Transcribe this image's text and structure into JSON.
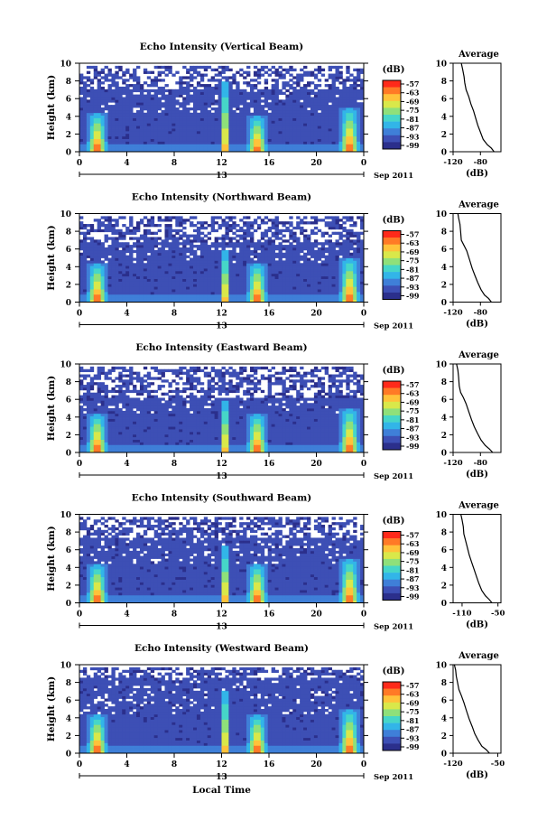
{
  "figure": {
    "date_label": "Sep 2011",
    "day_label": "13",
    "xlabel": "Local Time",
    "colorbar_unit": "(dB)",
    "avg_xlabel": "(dB)",
    "avg_title": "Average"
  },
  "colors": {
    "scale": [
      "#2b2f8c",
      "#3d4fb5",
      "#3f7fd8",
      "#32b5e8",
      "#46d6c8",
      "#8fe07a",
      "#d9e84a",
      "#ffc23a",
      "#ff7a26",
      "#ff2a1a"
    ]
  },
  "chart_data": [
    {
      "type": "heatmap",
      "title": "Echo Intensity (Vertical Beam)",
      "xlabel": "Local Time",
      "ylabel": "Height (km)",
      "xlim": [
        0,
        24
      ],
      "ylim": [
        0,
        10
      ],
      "x_ticks": [
        "0",
        "4",
        "8",
        "12",
        "16",
        "20",
        "0"
      ],
      "y_ticks": [
        "0",
        "2",
        "4",
        "6",
        "8",
        "10"
      ],
      "colorbar": {
        "unit": "(dB)",
        "ticks": [
          "-57",
          "-63",
          "-69",
          "-75",
          "-81",
          "-87",
          "-93",
          "-99"
        ]
      },
      "convective_cells": [
        {
          "x": 1.5,
          "top": 4.5
        },
        {
          "x": 12.3,
          "top": 8.0
        },
        {
          "x": 15.0,
          "top": 4.2
        },
        {
          "x": 22.8,
          "top": 5.0
        }
      ],
      "cloud_top_km": 7.2,
      "average_profile": {
        "title": "Average",
        "xlabel": "(dB)",
        "xlim": [
          -120,
          -50
        ],
        "x_ticks": [
          "-120",
          "-80"
        ],
        "points": [
          [
            -108,
            10
          ],
          [
            -106,
            9.3
          ],
          [
            -104,
            8.5
          ],
          [
            -103,
            7.8
          ],
          [
            -101,
            7.0
          ],
          [
            -97,
            6.2
          ],
          [
            -94,
            5.4
          ],
          [
            -90,
            4.6
          ],
          [
            -87,
            3.8
          ],
          [
            -84,
            3.0
          ],
          [
            -80,
            2.2
          ],
          [
            -76,
            1.4
          ],
          [
            -70,
            0.8
          ],
          [
            -64,
            0.4
          ],
          [
            -60,
            0
          ]
        ]
      }
    },
    {
      "type": "heatmap",
      "title": "Echo Intensity (Northward Beam)",
      "xlabel": "Local Time",
      "ylabel": "Height (km)",
      "xlim": [
        0,
        24
      ],
      "ylim": [
        0,
        10
      ],
      "x_ticks": [
        "0",
        "4",
        "8",
        "12",
        "16",
        "20",
        "0"
      ],
      "y_ticks": [
        "0",
        "2",
        "4",
        "6",
        "8",
        "10"
      ],
      "colorbar": {
        "unit": "(dB)",
        "ticks": [
          "-57",
          "-63",
          "-69",
          "-75",
          "-81",
          "-87",
          "-93",
          "-99"
        ]
      },
      "convective_cells": [
        {
          "x": 1.5,
          "top": 4.5
        },
        {
          "x": 12.3,
          "top": 6.0
        },
        {
          "x": 15.0,
          "top": 4.5
        },
        {
          "x": 22.8,
          "top": 5.0
        }
      ],
      "cloud_top_km": 6.8,
      "average_profile": {
        "title": "Average",
        "xlabel": "(dB)",
        "xlim": [
          -120,
          -50
        ],
        "x_ticks": [
          "-120",
          "-80"
        ],
        "points": [
          [
            -113,
            10
          ],
          [
            -112,
            9.5
          ],
          [
            -110,
            8.8
          ],
          [
            -109,
            8.0
          ],
          [
            -108,
            7.0
          ],
          [
            -104,
            6.4
          ],
          [
            -100,
            5.8
          ],
          [
            -96,
            4.8
          ],
          [
            -92,
            3.8
          ],
          [
            -88,
            3.0
          ],
          [
            -84,
            2.2
          ],
          [
            -79,
            1.4
          ],
          [
            -74,
            0.8
          ],
          [
            -68,
            0.4
          ],
          [
            -64,
            0
          ]
        ]
      }
    },
    {
      "type": "heatmap",
      "title": "Echo Intensity (Eastward Beam)",
      "xlabel": "Local Time",
      "ylabel": "Height (km)",
      "xlim": [
        0,
        24
      ],
      "ylim": [
        0,
        10
      ],
      "x_ticks": [
        "0",
        "4",
        "8",
        "12",
        "16",
        "20",
        "0"
      ],
      "y_ticks": [
        "0",
        "2",
        "4",
        "6",
        "8",
        "10"
      ],
      "colorbar": {
        "unit": "(dB)",
        "ticks": [
          "-57",
          "-63",
          "-69",
          "-75",
          "-81",
          "-87",
          "-93",
          "-99"
        ]
      },
      "convective_cells": [
        {
          "x": 1.5,
          "top": 4.5
        },
        {
          "x": 12.3,
          "top": 6.0
        },
        {
          "x": 15.0,
          "top": 4.5
        },
        {
          "x": 22.8,
          "top": 5.0
        }
      ],
      "cloud_top_km": 6.2,
      "average_profile": {
        "title": "Average",
        "xlabel": "(dB)",
        "xlim": [
          -120,
          -50
        ],
        "x_ticks": [
          "-120",
          "-80"
        ],
        "points": [
          [
            -115,
            10
          ],
          [
            -113,
            9.3
          ],
          [
            -112,
            8.5
          ],
          [
            -111,
            7.5
          ],
          [
            -109,
            6.8
          ],
          [
            -105,
            6.2
          ],
          [
            -101,
            5.5
          ],
          [
            -97,
            4.6
          ],
          [
            -93,
            3.7
          ],
          [
            -89,
            2.9
          ],
          [
            -84,
            2.1
          ],
          [
            -79,
            1.4
          ],
          [
            -73,
            0.8
          ],
          [
            -67,
            0.4
          ],
          [
            -62,
            0
          ]
        ]
      }
    },
    {
      "type": "heatmap",
      "title": "Echo Intensity (Southward Beam)",
      "xlabel": "Local Time",
      "ylabel": "Height (km)",
      "xlim": [
        0,
        24
      ],
      "ylim": [
        0,
        10
      ],
      "x_ticks": [
        "0",
        "4",
        "8",
        "12",
        "16",
        "20",
        "0"
      ],
      "y_ticks": [
        "0",
        "2",
        "4",
        "6",
        "8",
        "10"
      ],
      "colorbar": {
        "unit": "(dB)",
        "ticks": [
          "-57",
          "-63",
          "-69",
          "-75",
          "-81",
          "-87",
          "-93",
          "-99"
        ]
      },
      "convective_cells": [
        {
          "x": 1.5,
          "top": 4.5
        },
        {
          "x": 12.3,
          "top": 6.5
        },
        {
          "x": 15.0,
          "top": 4.5
        },
        {
          "x": 22.8,
          "top": 5.0
        }
      ],
      "cloud_top_km": 7.5,
      "average_profile": {
        "title": "Average",
        "xlabel": "(dB)",
        "xlim": [
          -125,
          -45
        ],
        "x_ticks": [
          "-110",
          "-50"
        ],
        "points": [
          [
            -112,
            10
          ],
          [
            -110,
            9.4
          ],
          [
            -108,
            8.6
          ],
          [
            -107,
            7.8
          ],
          [
            -104,
            7.0
          ],
          [
            -101,
            6.2
          ],
          [
            -98,
            5.4
          ],
          [
            -94,
            4.6
          ],
          [
            -90,
            3.8
          ],
          [
            -86,
            3.0
          ],
          [
            -82,
            2.2
          ],
          [
            -77,
            1.4
          ],
          [
            -71,
            0.8
          ],
          [
            -65,
            0.4
          ],
          [
            -60,
            0
          ]
        ]
      }
    },
    {
      "type": "heatmap",
      "title": "Echo Intensity (Westward Beam)",
      "xlabel": "Local Time",
      "ylabel": "Height (km)",
      "xlim": [
        0,
        24
      ],
      "ylim": [
        0,
        10
      ],
      "x_ticks": [
        "0",
        "4",
        "8",
        "12",
        "16",
        "20",
        "0"
      ],
      "y_ticks": [
        "0",
        "2",
        "4",
        "6",
        "8",
        "10"
      ],
      "colorbar": {
        "unit": "(dB)",
        "ticks": [
          "-57",
          "-63",
          "-69",
          "-75",
          "-81",
          "-87",
          "-93",
          "-99"
        ]
      },
      "convective_cells": [
        {
          "x": 1.5,
          "top": 4.5
        },
        {
          "x": 12.3,
          "top": 7.0
        },
        {
          "x": 15.0,
          "top": 4.5
        },
        {
          "x": 22.8,
          "top": 5.0
        }
      ],
      "cloud_top_km": 8.5,
      "average_profile": {
        "title": "Average",
        "xlabel": "(dB)",
        "xlim": [
          -120,
          -45
        ],
        "x_ticks": [
          "-120",
          "-50"
        ],
        "points": [
          [
            -118,
            10
          ],
          [
            -116,
            9.4
          ],
          [
            -115,
            8.7
          ],
          [
            -113,
            8.0
          ],
          [
            -111,
            7.2
          ],
          [
            -107,
            6.5
          ],
          [
            -103,
            5.7
          ],
          [
            -99,
            4.8
          ],
          [
            -95,
            3.9
          ],
          [
            -90,
            3.0
          ],
          [
            -86,
            2.2
          ],
          [
            -81,
            1.5
          ],
          [
            -75,
            0.8
          ],
          [
            -68,
            0.4
          ],
          [
            -63,
            0
          ]
        ]
      }
    }
  ]
}
